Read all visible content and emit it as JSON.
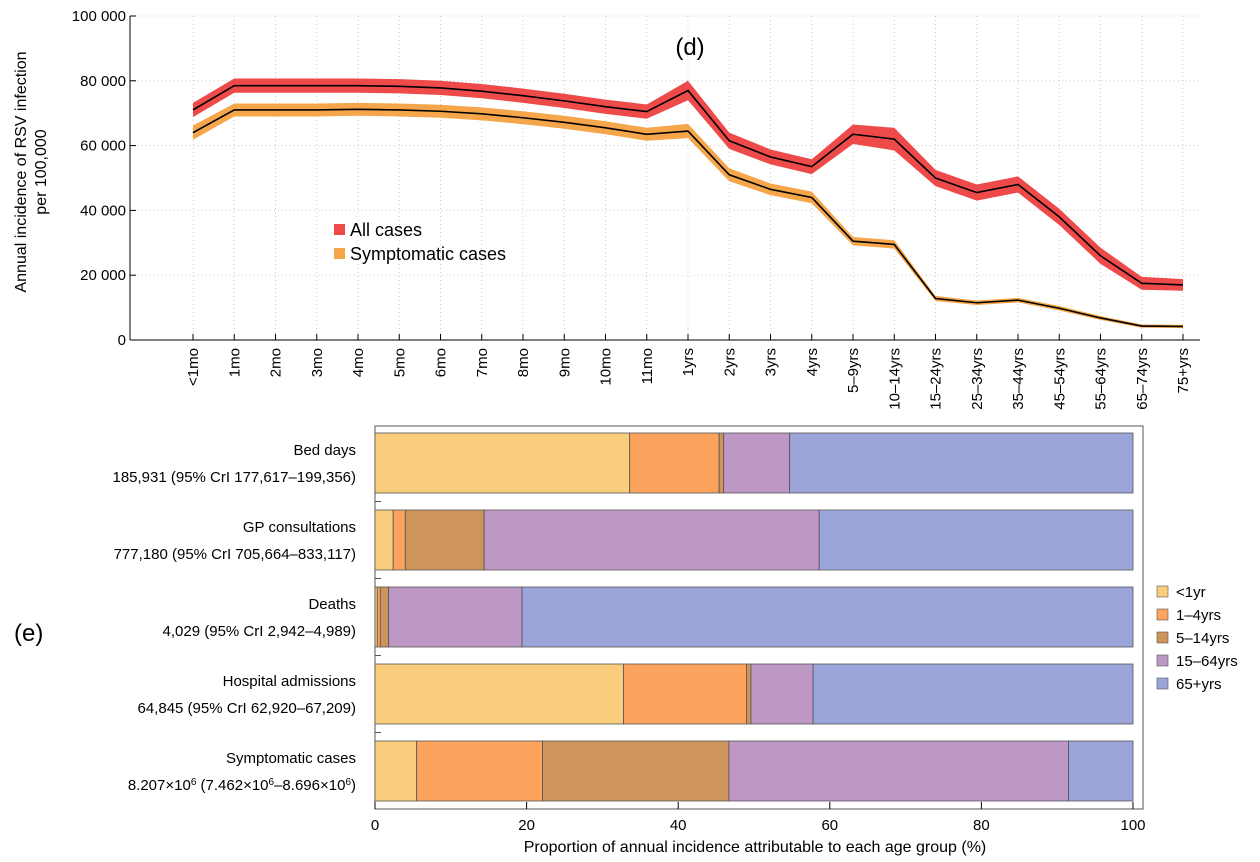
{
  "chart_data": [
    {
      "type": "line",
      "panel_label": "(d)",
      "title": "",
      "xlabel": "",
      "ylabel": "Annual incidence of RSV infection",
      "ylabel2": "per 100,000",
      "categories": [
        "<1mo",
        "1mo",
        "2mo",
        "3mo",
        "4mo",
        "5mo",
        "6mo",
        "7mo",
        "8mo",
        "9mo",
        "10mo",
        "11mo",
        "1yrs",
        "2yrs",
        "3yrs",
        "4yrs",
        "5–9yrs",
        "10–14yrs",
        "15–24yrs",
        "25–34yrs",
        "35–44yrs",
        "45–54yrs",
        "55–64yrs",
        "65–74yrs",
        "75+yrs"
      ],
      "ylim": [
        0,
        100000
      ],
      "yticks": [
        0,
        20000,
        40000,
        60000,
        80000,
        100000
      ],
      "ytick_labels": [
        "0",
        "20 000",
        "40 000",
        "60 000",
        "80 000",
        "100 000"
      ],
      "grid": "dotted vertical and horizontal",
      "legend_position": "middle-left",
      "series": [
        {
          "name": "All cases",
          "color": "#ee4a4a",
          "values": [
            71000,
            78500,
            78500,
            78500,
            78500,
            78300,
            77800,
            76800,
            75400,
            73800,
            72000,
            70500,
            77000,
            61500,
            56500,
            53500,
            63500,
            62000,
            50000,
            45500,
            48000,
            38000,
            26000,
            17500,
            17000
          ],
          "band": [
            2200,
            2200,
            2200,
            2200,
            2200,
            2200,
            2200,
            2200,
            2200,
            2200,
            2200,
            2200,
            3000,
            2500,
            2300,
            2300,
            3000,
            3500,
            2500,
            2500,
            2500,
            2500,
            2500,
            2000,
            1800
          ]
        },
        {
          "name": "Symptomatic cases",
          "color": "#f5a64a",
          "values": [
            64000,
            71000,
            71000,
            71000,
            71200,
            71000,
            70600,
            69800,
            68600,
            67200,
            65500,
            63500,
            64500,
            51000,
            46500,
            44000,
            30500,
            29500,
            12800,
            11500,
            12300,
            9800,
            6800,
            4300,
            4200
          ],
          "band": [
            2200,
            2000,
            2000,
            2000,
            2000,
            2000,
            2000,
            2000,
            2000,
            2000,
            2000,
            2000,
            2200,
            2000,
            1800,
            1800,
            1300,
            1300,
            800,
            700,
            700,
            700,
            600,
            500,
            500
          ]
        }
      ]
    },
    {
      "type": "bar",
      "orientation": "horizontal-stacked",
      "panel_label": "(e)",
      "title": "",
      "xlabel": "Proportion of annual incidence attributable to each age group (%)",
      "ylabel": "",
      "xlim": [
        0,
        100
      ],
      "xticks": [
        0,
        20,
        40,
        60,
        80,
        100
      ],
      "legend_position": "right",
      "segments": [
        {
          "name": "<1yr",
          "color": "#f9cd7b"
        },
        {
          "name": "1–4yrs",
          "color": "#fca35d"
        },
        {
          "name": "5–14yrs",
          "color": "#cd955b"
        },
        {
          "name": "15–64yrs",
          "color": "#bd98c4"
        },
        {
          "name": "65+yrs",
          "color": "#9ba5da"
        }
      ],
      "bars": [
        {
          "label": "Bed days",
          "sublabel": "185,931 (95% CrI 177,617–199,356)",
          "values": [
            33.6,
            11.8,
            0.6,
            8.7,
            45.3
          ]
        },
        {
          "label": "GP consultations",
          "sublabel": "777,180 (95% CrI 705,664–833,117)",
          "values": [
            2.4,
            1.6,
            10.4,
            44.2,
            41.4
          ]
        },
        {
          "label": "Deaths",
          "sublabel": "4,029 (95% CrI 2,942–4,989)",
          "values": [
            0.3,
            0.4,
            1.1,
            17.6,
            80.6
          ]
        },
        {
          "label": "Hospital admissions",
          "sublabel": "64,845 (95% CrI 62,920–67,209)",
          "values": [
            32.8,
            16.2,
            0.6,
            8.2,
            42.2
          ]
        },
        {
          "label": "Symptomatic cases",
          "sublabel_parts": [
            "8.207",
            "×10",
            "6",
            " (7.462",
            "×10",
            "6",
            "–8.696",
            "×10",
            "6",
            ")"
          ],
          "values": [
            5.5,
            16.6,
            24.6,
            44.8,
            8.5
          ]
        }
      ]
    }
  ]
}
